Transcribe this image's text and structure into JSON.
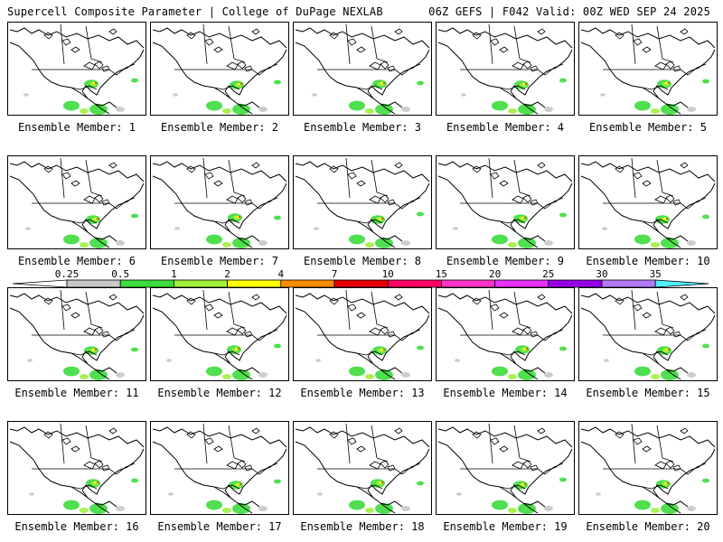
{
  "header": {
    "title": "Supercell Composite Parameter | College of DuPage NEXLAB",
    "run_info": "06Z GEFS | F042 Valid: 00Z WED SEP 24 2025"
  },
  "panels": [
    {
      "label": "Ensemble Member: 1"
    },
    {
      "label": "Ensemble Member: 2"
    },
    {
      "label": "Ensemble Member: 3"
    },
    {
      "label": "Ensemble Member: 4"
    },
    {
      "label": "Ensemble Member: 5"
    },
    {
      "label": "Ensemble Member: 6"
    },
    {
      "label": "Ensemble Member: 7"
    },
    {
      "label": "Ensemble Member: 8"
    },
    {
      "label": "Ensemble Member: 9"
    },
    {
      "label": "Ensemble Member: 10"
    },
    {
      "label": "Ensemble Member: 11"
    },
    {
      "label": "Ensemble Member: 12"
    },
    {
      "label": "Ensemble Member: 13"
    },
    {
      "label": "Ensemble Member: 14"
    },
    {
      "label": "Ensemble Member: 15"
    },
    {
      "label": "Ensemble Member: 16"
    },
    {
      "label": "Ensemble Member: 17"
    },
    {
      "label": "Ensemble Member: 18"
    },
    {
      "label": "Ensemble Member: 19"
    },
    {
      "label": "Ensemble Member: 20"
    }
  ],
  "legend": {
    "labels": [
      "0.25",
      "0.5",
      "1",
      "2",
      "4",
      "7",
      "10",
      "15",
      "20",
      "25",
      "30",
      "35"
    ],
    "colors": [
      "#c8c8c8",
      "#3cdc3c",
      "#a0f03c",
      "#ffff00",
      "#ff8c00",
      "#e60000",
      "#ff0064",
      "#ff32c8",
      "#e632ff",
      "#9600e6",
      "#b478ff",
      "#50f0ff"
    ]
  }
}
